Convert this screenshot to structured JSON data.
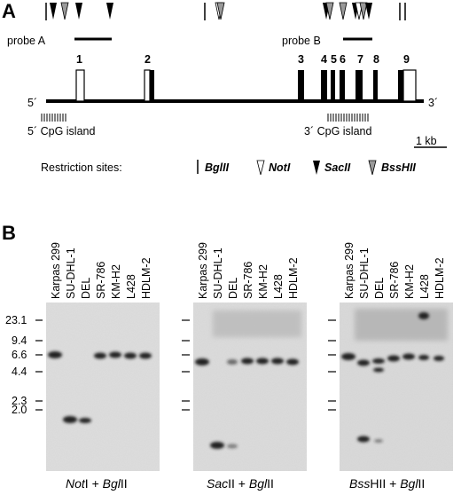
{
  "figure": {
    "panel_a": {
      "letter": "A",
      "probe_a_label": "probe A",
      "probe_b_label": "probe B",
      "exons": [
        "1",
        "2",
        "3",
        "4",
        "5",
        "6",
        "7",
        "8",
        "9"
      ],
      "end_5": "5´",
      "end_3": "3´",
      "cpg_5": "5´ CpG island",
      "cpg_3": "3´ CpG island",
      "scale_bar": "1 kb",
      "restriction": {
        "title": "Restriction sites:",
        "bglii": "BglII",
        "noti": "NotI",
        "sacii": "SacII",
        "bsshii": "BssHII"
      }
    },
    "panel_b": {
      "letter": "B",
      "lanes": [
        "Karpas 299",
        "SU-DHL-1",
        "DEL",
        "SR-786",
        "KM-H2",
        "L428",
        "HDLM-2"
      ],
      "markers": [
        "23.1",
        "9.4",
        "6.6",
        "4.4",
        "2.3",
        "2.0"
      ],
      "blots": [
        {
          "enzyme_italic": "Not",
          "enzyme_rest": "I + ",
          "bgl_italic": "Bgl",
          "bgl_rest": "II"
        },
        {
          "enzyme_italic": "Sac",
          "enzyme_rest": "II + ",
          "bgl_italic": "Bgl",
          "bgl_rest": "II"
        },
        {
          "enzyme_italic": "Bss",
          "enzyme_rest": "HII + ",
          "bgl_italic": "Bgl",
          "bgl_rest": "II"
        }
      ]
    }
  }
}
